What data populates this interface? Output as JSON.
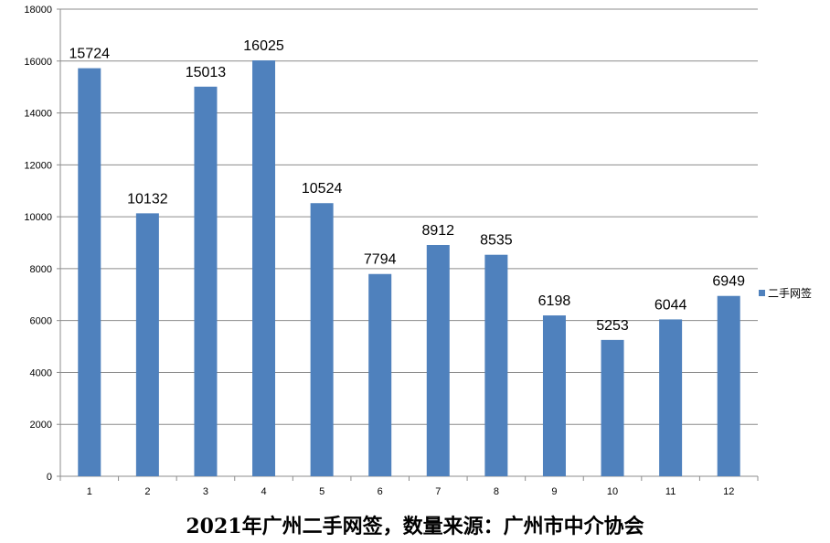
{
  "caption": "2021年广州二手网签，数量来源：广州市中介协会",
  "chart_data": {
    "type": "bar",
    "categories": [
      "1",
      "2",
      "3",
      "4",
      "5",
      "6",
      "7",
      "8",
      "9",
      "10",
      "11",
      "12"
    ],
    "series": [
      {
        "name": "二手网签",
        "values": [
          15724,
          10132,
          15013,
          16025,
          10524,
          7794,
          8912,
          8535,
          6198,
          5253,
          6044,
          6949
        ],
        "color": "#4f81bd"
      }
    ],
    "ylim": [
      0,
      18000
    ],
    "yticks": [
      0,
      2000,
      4000,
      6000,
      8000,
      10000,
      12000,
      14000,
      16000,
      18000
    ],
    "grid": true,
    "data_labels": true,
    "legend_position": "right",
    "title": "",
    "xlabel": "",
    "ylabel": ""
  }
}
